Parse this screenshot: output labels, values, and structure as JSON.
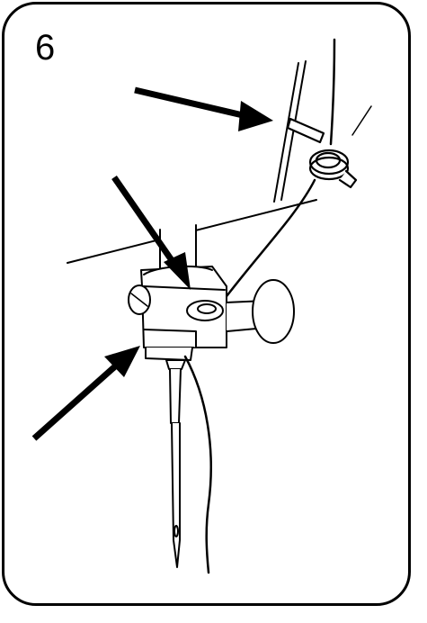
{
  "step": {
    "number": "6"
  },
  "colors": {
    "ink": "#000000",
    "paper": "#ffffff"
  },
  "illustration": {
    "subject": "sewing-machine-needle-threading",
    "arrows": [
      "thread-guide-arrow",
      "needle-bar-guide-arrow",
      "needle-clamp-arrow"
    ]
  }
}
